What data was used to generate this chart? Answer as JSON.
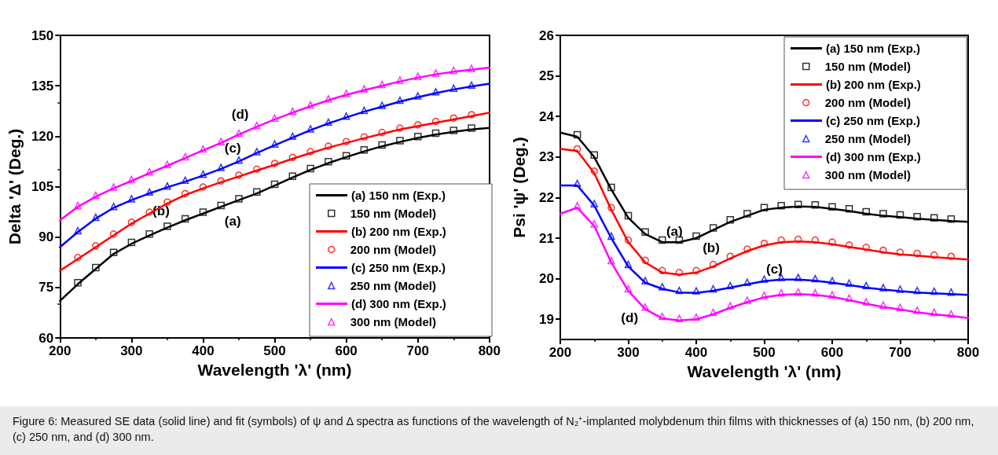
{
  "chart_data": [
    {
      "type": "line",
      "xlabel": "Wavelength 'λ' (nm)",
      "ylabel": "Delta 'Δ' (Deg.)",
      "xlim": [
        200,
        800
      ],
      "xticks": [
        200,
        300,
        400,
        500,
        600,
        700,
        800
      ],
      "ylim": [
        60,
        150
      ],
      "yticks": [
        60,
        75,
        90,
        105,
        120,
        135,
        150
      ],
      "grid": false,
      "legend": "bottom right",
      "line_style": "solid",
      "x": [
        200,
        225,
        250,
        275,
        300,
        325,
        350,
        375,
        400,
        425,
        450,
        475,
        500,
        525,
        550,
        575,
        600,
        625,
        650,
        675,
        700,
        725,
        750,
        775,
        800
      ],
      "series": [
        {
          "name": "(a) 150 nm (Exp.)",
          "type": "line",
          "color": "#000000",
          "values": [
            71,
            76,
            80.5,
            85,
            88,
            90.5,
            92.8,
            95,
            97,
            99,
            101,
            103,
            105.3,
            107.7,
            110,
            112,
            113.8,
            115.5,
            117,
            118.3,
            119.5,
            120.5,
            121.3,
            122,
            122.5
          ]
        },
        {
          "name": "150 nm (Model)",
          "type": "scatter",
          "marker": "square",
          "color": "#000000",
          "values": [
            null,
            76.4,
            80.9,
            85.4,
            88.4,
            90.9,
            93.2,
            95.4,
            97.4,
            99.4,
            101.4,
            103.4,
            105.7,
            108.1,
            110.4,
            112.4,
            114.2,
            115.9,
            117.4,
            118.7,
            119.9,
            120.9,
            121.7,
            122.4,
            null
          ]
        },
        {
          "name": "(b) 200 nm (Exp.)",
          "type": "line",
          "color": "#ff0000",
          "values": [
            80,
            83.5,
            87,
            90.5,
            94,
            97,
            100,
            102.5,
            104.5,
            106.3,
            108,
            109.8,
            111.5,
            113.3,
            115,
            116.6,
            118,
            119.4,
            120.7,
            122,
            123,
            124,
            125,
            126,
            127
          ]
        },
        {
          "name": "200 nm (Model)",
          "type": "scatter",
          "marker": "circle",
          "color": "#ff0000",
          "values": [
            null,
            83.9,
            87.4,
            90.9,
            94.4,
            97.4,
            100.4,
            102.9,
            104.9,
            106.7,
            108.4,
            110.2,
            111.9,
            113.7,
            115.4,
            117,
            118.4,
            119.8,
            121.1,
            122.4,
            123.4,
            124.4,
            125.4,
            126.4,
            null
          ]
        },
        {
          "name": "(c) 250 nm (Exp.)",
          "type": "line",
          "color": "#0000ff",
          "values": [
            87,
            91.5,
            95.5,
            98.7,
            101,
            103,
            104.8,
            106.5,
            108.3,
            110.3,
            112.5,
            115,
            117.3,
            119.6,
            121.8,
            123.8,
            125.6,
            127.3,
            128.8,
            130.3,
            131.6,
            132.8,
            133.9,
            134.8,
            135.6
          ]
        },
        {
          "name": "250 nm (Model)",
          "type": "scatter",
          "marker": "triangle",
          "color": "#0000ff",
          "values": [
            null,
            91.9,
            95.9,
            99.1,
            101.4,
            103.4,
            105.2,
            106.9,
            108.7,
            110.7,
            112.9,
            115.4,
            117.7,
            120,
            122.2,
            124.2,
            126,
            127.7,
            129.2,
            130.7,
            132,
            133.2,
            134.3,
            135.2,
            null
          ]
        },
        {
          "name": "(d) 300 nm (Exp.)",
          "type": "line",
          "color": "#ff00ff",
          "values": [
            95,
            99,
            102,
            104.5,
            106.7,
            109,
            111.2,
            113.5,
            115.8,
            118,
            120.5,
            122.8,
            125,
            127,
            128.9,
            130.7,
            132.3,
            133.7,
            135,
            136.3,
            137.4,
            138.4,
            139.2,
            139.8,
            140.4
          ]
        },
        {
          "name": "300 nm (Model)",
          "type": "scatter",
          "marker": "triangle",
          "color": "#ff00ff",
          "values": [
            null,
            99.4,
            102.4,
            104.9,
            107.1,
            109.4,
            111.6,
            113.9,
            116.2,
            118.4,
            120.9,
            123.2,
            125.4,
            127.4,
            129.3,
            131.1,
            132.7,
            134.1,
            135.4,
            136.7,
            137.8,
            138.8,
            139.6,
            140.2,
            null
          ]
        }
      ],
      "annotations": [
        "(a)",
        "(b)",
        "(c)",
        "(d)",
        "Figure 6: Measured SE data (solid line) and fit (symbols) of ψ and Δ spectra as functions of the wavelength of N₂⁺-implanted molybdenum thin films with thicknesses of (a) 150 nm, (b) 200 nm, (c) 250 nm, and (d) 300 nm."
      ]
    },
    {
      "type": "line",
      "xlabel": "Wavelength 'λ' (nm)",
      "ylabel": "Psi 'ψ' (Deg.)",
      "xlim": [
        200,
        800
      ],
      "xticks": [
        200,
        300,
        400,
        500,
        600,
        700,
        800
      ],
      "ylim": [
        18.5,
        26
      ],
      "yticks": [
        19,
        20,
        21,
        22,
        23,
        24,
        25,
        26
      ],
      "grid": false,
      "legend": "top right",
      "line_style": "solid",
      "x": [
        200,
        225,
        250,
        275,
        300,
        325,
        350,
        375,
        400,
        425,
        450,
        475,
        500,
        525,
        550,
        575,
        600,
        625,
        650,
        675,
        700,
        725,
        750,
        775,
        800
      ],
      "series": [
        {
          "name": "(a) 150 nm (Exp.)",
          "type": "line",
          "color": "#000000",
          "values": [
            23.6,
            23.5,
            23.0,
            22.2,
            21.5,
            21.1,
            20.9,
            20.9,
            21.0,
            21.2,
            21.4,
            21.55,
            21.7,
            21.75,
            21.78,
            21.77,
            21.72,
            21.67,
            21.6,
            21.55,
            21.52,
            21.48,
            21.45,
            21.42,
            21.4
          ]
        },
        {
          "name": "150 nm (Model)",
          "type": "scatter",
          "marker": "square",
          "color": "#000000",
          "values": [
            null,
            23.55,
            23.05,
            22.25,
            21.55,
            21.15,
            20.95,
            20.95,
            21.05,
            21.25,
            21.45,
            21.6,
            21.75,
            21.8,
            21.83,
            21.82,
            21.77,
            21.72,
            21.65,
            21.6,
            21.57,
            21.53,
            21.5,
            21.47,
            null
          ]
        },
        {
          "name": "(b) 200 nm (Exp.)",
          "type": "line",
          "color": "#ff0000",
          "values": [
            23.2,
            23.15,
            22.6,
            21.7,
            20.9,
            20.4,
            20.15,
            20.1,
            20.15,
            20.3,
            20.5,
            20.68,
            20.82,
            20.9,
            20.92,
            20.9,
            20.85,
            20.78,
            20.72,
            20.65,
            20.6,
            20.57,
            20.53,
            20.5,
            20.47
          ]
        },
        {
          "name": "200 nm (Model)",
          "type": "scatter",
          "marker": "circle",
          "color": "#ff0000",
          "values": [
            null,
            23.2,
            22.65,
            21.75,
            20.95,
            20.45,
            20.2,
            20.15,
            20.2,
            20.35,
            20.55,
            20.73,
            20.87,
            20.95,
            20.97,
            20.95,
            20.9,
            20.83,
            20.77,
            20.7,
            20.65,
            20.62,
            20.58,
            20.55,
            null
          ]
        },
        {
          "name": "(c) 250 nm (Exp.)",
          "type": "line",
          "color": "#0000ff",
          "values": [
            22.3,
            22.3,
            21.8,
            21.0,
            20.3,
            19.9,
            19.75,
            19.66,
            19.65,
            19.7,
            19.78,
            19.86,
            19.94,
            19.98,
            19.98,
            19.95,
            19.9,
            19.84,
            19.78,
            19.73,
            19.69,
            19.66,
            19.64,
            19.62,
            19.6
          ]
        },
        {
          "name": "250 nm (Model)",
          "type": "scatter",
          "marker": "triangle",
          "color": "#0000ff",
          "values": [
            null,
            22.35,
            21.85,
            21.05,
            20.35,
            19.95,
            19.8,
            19.71,
            19.7,
            19.75,
            19.83,
            19.91,
            19.99,
            20.03,
            20.03,
            20,
            19.95,
            19.89,
            19.83,
            19.78,
            19.74,
            19.71,
            19.69,
            19.67,
            null
          ]
        },
        {
          "name": "(d) 300 nm (Exp.)",
          "type": "line",
          "color": "#ff00ff",
          "values": [
            21.6,
            21.75,
            21.3,
            20.4,
            19.7,
            19.25,
            19.02,
            18.97,
            19.0,
            19.12,
            19.28,
            19.42,
            19.54,
            19.6,
            19.62,
            19.6,
            19.55,
            19.47,
            19.38,
            19.3,
            19.24,
            19.17,
            19.12,
            19.08,
            19.03
          ]
        },
        {
          "name": "300 nm (Model)",
          "type": "scatter",
          "marker": "triangle",
          "color": "#ff00ff",
          "values": [
            null,
            21.8,
            21.35,
            20.45,
            19.75,
            19.3,
            19.07,
            19.02,
            19.05,
            19.17,
            19.33,
            19.47,
            19.59,
            19.65,
            19.67,
            19.65,
            19.6,
            19.52,
            19.43,
            19.35,
            19.29,
            19.22,
            19.17,
            19.13,
            null
          ]
        }
      ],
      "annotations": [
        "(a)",
        "(b)",
        "(c)",
        "(d)"
      ]
    }
  ]
}
